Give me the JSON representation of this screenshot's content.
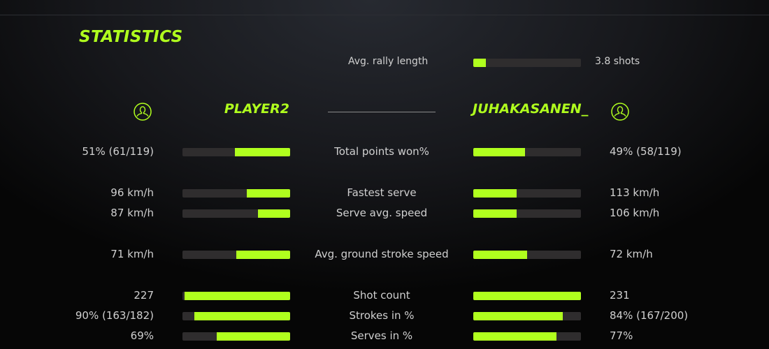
{
  "title": "STATISTICS",
  "accent": "#b0ff1e",
  "rally": {
    "label": "Avg. rally length",
    "value": "3.8 shots",
    "fill": 0.12
  },
  "players": {
    "left": {
      "name": "PLAYER2",
      "icon": "user-circle-icon"
    },
    "right": {
      "name": "JUHAKASANEN_",
      "icon": "user-circle-icon"
    }
  },
  "stats": [
    {
      "label": "Total points won%",
      "left": "51% (61/119)",
      "right": "49% (58/119)",
      "left_fill": 0.51,
      "right_fill": 0.48
    },
    {
      "label": "Fastest serve",
      "left": "96 km/h",
      "right": "113 km/h",
      "left_fill": 0.4,
      "right_fill": 0.4
    },
    {
      "label": "Serve avg. speed",
      "left": "87 km/h",
      "right": "106 km/h",
      "left_fill": 0.3,
      "right_fill": 0.4
    },
    {
      "label": "Avg. ground stroke speed",
      "left": "71 km/h",
      "right": "72 km/h",
      "left_fill": 0.5,
      "right_fill": 0.5
    },
    {
      "label": "Shot count",
      "left": "227",
      "right": "231",
      "left_fill": 0.98,
      "right_fill": 1.0
    },
    {
      "label": "Strokes in %",
      "left": "90% (163/182)",
      "right": "84% (167/200)",
      "left_fill": 0.89,
      "right_fill": 0.83
    },
    {
      "label": "Serves in %",
      "left": "69%",
      "right": "77%",
      "left_fill": 0.68,
      "right_fill": 0.77
    }
  ]
}
